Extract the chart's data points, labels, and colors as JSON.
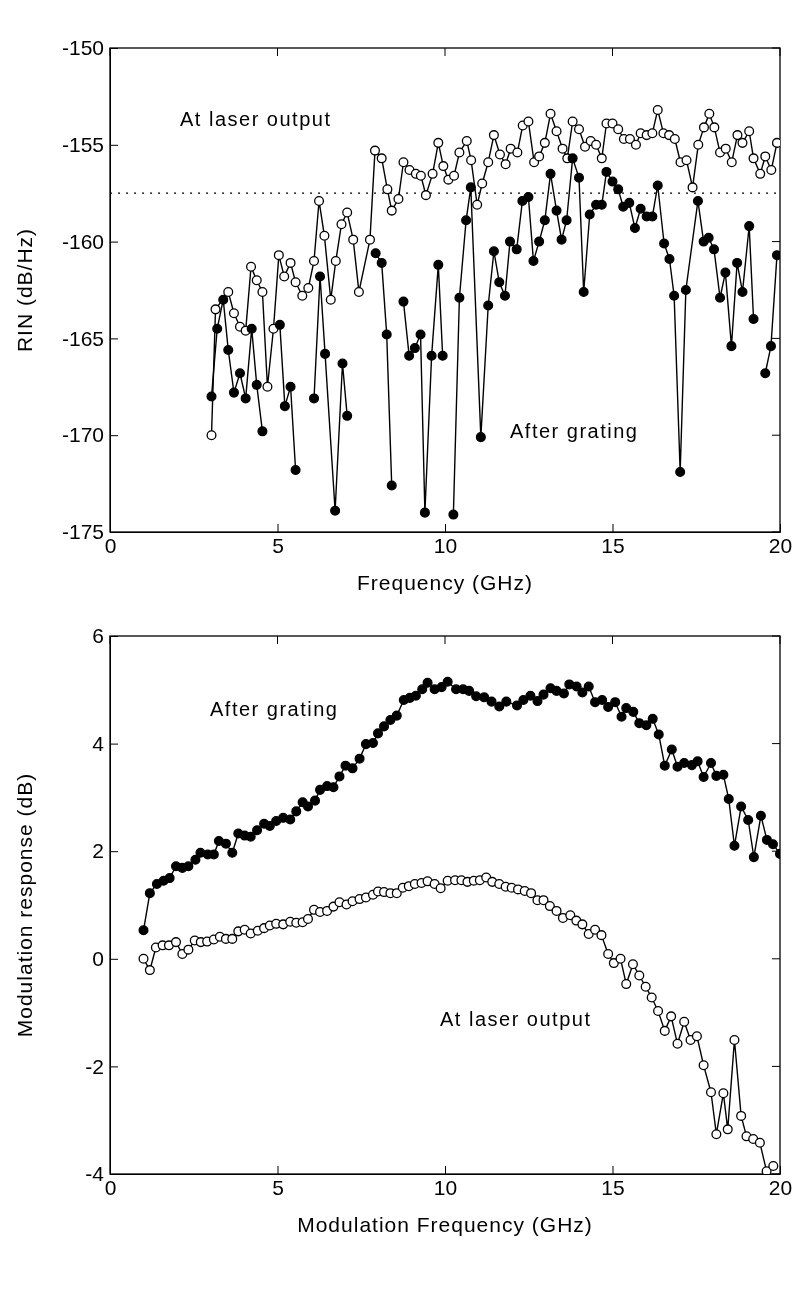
{
  "chart_data": [
    {
      "type": "line",
      "xlabel": "Frequency  (GHz)",
      "ylabel": "RIN  (dB/Hz)",
      "xlim": [
        0,
        20
      ],
      "ylim": [
        -175,
        -150
      ],
      "xticks": [
        0,
        5,
        10,
        15,
        20
      ],
      "yticks": [
        -175,
        -170,
        -165,
        -160,
        -155,
        -150
      ],
      "grid": false,
      "marker": "circle",
      "line_style": "solid",
      "ref_lines": [
        {
          "axis": "y",
          "value": -157.5,
          "line_style": "dotted",
          "color": "#000000"
        }
      ],
      "series": [
        {
          "name": "At laser output",
          "color": "#000000",
          "x": [
            3.03,
            3.15,
            3.53,
            3.7,
            3.88,
            4.05,
            4.21,
            4.38,
            4.55,
            4.7,
            4.88,
            5.04,
            5.2,
            5.39,
            5.54,
            5.74,
            5.92,
            6.09,
            6.24,
            6.4,
            6.59,
            6.74,
            6.91,
            7.08,
            7.26,
            7.43,
            7.76,
            7.91,
            8.11,
            8.28,
            8.41,
            8.61,
            8.76,
            8.94,
            9.13,
            9.28,
            9.43,
            9.63,
            9.8,
            9.95,
            10.1,
            10.27,
            10.43,
            10.65,
            10.78,
            10.96,
            11.11,
            11.29,
            11.46,
            11.64,
            11.81,
            11.96,
            12.16,
            12.32,
            12.49,
            12.66,
            12.81,
            12.98,
            13.15,
            13.33,
            13.51,
            13.65,
            13.81,
            14.0,
            14.18,
            14.35,
            14.51,
            14.68,
            14.82,
            15.0,
            15.17,
            15.34,
            15.52,
            15.7,
            15.84,
            16.02,
            16.19,
            16.35,
            16.52,
            16.69,
            16.86,
            17.03,
            17.21,
            17.39,
            17.56,
            17.73,
            17.89,
            18.04,
            18.21,
            18.38,
            18.56,
            18.73,
            18.88,
            19.08,
            19.21,
            19.41,
            19.56,
            19.74,
            19.91
          ],
          "values": [
            -170.0,
            -163.5,
            -162.6,
            -163.7,
            -164.4,
            -164.6,
            -161.3,
            -162.0,
            -162.6,
            -167.5,
            -164.5,
            -160.7,
            -161.8,
            -161.1,
            -162.1,
            -162.8,
            -162.4,
            -161.0,
            -157.9,
            -159.7,
            -163.0,
            -161.0,
            -159.1,
            -158.5,
            -159.9,
            -162.6,
            -159.9,
            -155.3,
            -155.7,
            -157.3,
            -158.4,
            -157.8,
            -155.9,
            -156.3,
            -156.5,
            -156.6,
            -157.6,
            -156.5,
            -154.9,
            -156.1,
            -156.8,
            -156.6,
            -155.4,
            -154.8,
            -155.8,
            -158.1,
            -157.0,
            -155.9,
            -154.5,
            -155.5,
            -156.0,
            -155.2,
            -155.4,
            -154.0,
            -153.8,
            -155.9,
            -155.6,
            -154.9,
            -153.4,
            -154.3,
            -155.2,
            -155.7,
            -153.8,
            -154.2,
            -155.1,
            -154.8,
            -155.0,
            -155.7,
            -153.9,
            -153.9,
            -154.2,
            -154.7,
            -154.7,
            -155.0,
            -154.4,
            -154.5,
            -154.4,
            -153.2,
            -154.4,
            -154.5,
            -154.7,
            -155.9,
            -155.8,
            -157.2,
            -155.0,
            -154.1,
            -153.4,
            -154.1,
            -155.4,
            -155.2,
            -155.9,
            -154.5,
            -154.9,
            -154.3,
            -155.7,
            -156.5,
            -155.6,
            -156.3,
            -154.9
          ]
        },
        {
          "name": "After grating",
          "color": "#000000",
          "x": [
            3.03,
            3.2,
            3.38,
            3.53,
            3.7,
            3.88,
            4.05,
            4.23,
            4.38,
            4.55,
            4.7,
            5.07,
            5.22,
            5.39,
            5.54,
            5.72,
            6.09,
            6.27,
            6.42,
            6.72,
            6.94,
            7.08,
            7.3,
            7.93,
            8.11,
            8.26,
            8.41,
            8.6,
            8.76,
            8.93,
            9.1,
            9.27,
            9.4,
            9.6,
            9.8,
            9.93,
            10.1,
            10.25,
            10.43,
            10.63,
            10.77,
            11.07,
            11.29,
            11.46,
            11.62,
            11.79,
            11.94,
            12.14,
            12.31,
            12.49,
            12.64,
            12.81,
            12.98,
            13.15,
            13.33,
            13.48,
            13.63,
            13.81,
            14.0,
            14.14,
            14.32,
            14.51,
            14.68,
            14.82,
            15.0,
            15.17,
            15.32,
            15.5,
            15.67,
            15.84,
            16.02,
            16.19,
            16.35,
            16.54,
            16.7,
            16.84,
            17.02,
            17.19,
            17.55,
            17.72,
            17.87,
            18.03,
            18.21,
            18.37,
            18.55,
            18.72,
            18.88,
            19.08,
            19.21,
            19.4,
            19.56,
            19.73,
            19.91
          ],
          "values": [
            -168.0,
            -164.5,
            -163.0,
            -165.6,
            -167.8,
            -166.8,
            -168.1,
            -164.5,
            -167.4,
            -169.8,
            null,
            -164.3,
            -168.5,
            -167.5,
            -171.8,
            null,
            -168.1,
            -161.8,
            -165.8,
            -173.9,
            -166.3,
            -169.0,
            null,
            -160.6,
            -161.1,
            -164.8,
            -172.6,
            null,
            -163.1,
            -165.9,
            -165.5,
            -164.8,
            -174.0,
            -165.9,
            -161.2,
            -165.9,
            null,
            -174.1,
            -162.9,
            -158.9,
            -157.2,
            -170.1,
            -163.3,
            -160.5,
            -162.1,
            -162.8,
            -160.0,
            -160.4,
            -157.9,
            -157.7,
            -161.0,
            -160.0,
            -158.9,
            -156.5,
            -158.4,
            -159.9,
            -158.9,
            -155.7,
            -156.7,
            -162.6,
            -158.6,
            -158.1,
            -158.1,
            -156.4,
            -156.9,
            -157.3,
            -158.2,
            -158.0,
            -159.3,
            -158.3,
            -158.7,
            -158.7,
            -157.1,
            -160.1,
            -160.9,
            -162.8,
            -171.9,
            -162.5,
            -157.9,
            -160.0,
            -159.8,
            -160.4,
            -162.9,
            -161.6,
            -165.4,
            -161.1,
            -162.6,
            -159.2,
            -164.0,
            null,
            -166.8,
            -165.4,
            -160.7
          ]
        }
      ]
    },
    {
      "type": "line",
      "xlabel": "Modulation Frequency  (GHz)",
      "ylabel": "Modulation response (dB)",
      "xlim": [
        0,
        20
      ],
      "ylim": [
        -4,
        6
      ],
      "xticks": [
        0,
        5,
        10,
        15,
        20
      ],
      "yticks": [
        -4,
        -2,
        0,
        2,
        4,
        6
      ],
      "grid": false,
      "marker": "circle",
      "line_style": "solid",
      "series": [
        {
          "name": "After grating",
          "color": "#000000",
          "x": [
            1.0,
            1.19,
            1.4,
            1.6,
            1.78,
            1.97,
            2.16,
            2.34,
            2.55,
            2.7,
            2.92,
            3.1,
            3.25,
            3.46,
            3.65,
            3.83,
            4.02,
            4.2,
            4.39,
            4.6,
            4.77,
            4.96,
            5.17,
            5.38,
            5.56,
            5.75,
            5.91,
            6.12,
            6.27,
            6.48,
            6.67,
            6.85,
            7.03,
            7.24,
            7.45,
            7.64,
            7.85,
            8.0,
            8.18,
            8.37,
            8.56,
            8.77,
            8.95,
            9.13,
            9.32,
            9.48,
            9.69,
            9.9,
            10.08,
            10.33,
            10.54,
            10.72,
            10.93,
            11.17,
            11.39,
            11.62,
            11.83,
            12.15,
            12.34,
            12.55,
            12.76,
            12.94,
            13.15,
            13.33,
            13.55,
            13.71,
            13.93,
            14.1,
            14.29,
            14.48,
            14.69,
            14.87,
            15.08,
            15.27,
            15.41,
            15.62,
            15.8,
            16.01,
            16.2,
            16.38,
            16.56,
            16.77,
            16.94,
            17.14,
            17.37,
            17.54,
            17.72,
            17.94,
            18.1,
            18.31,
            18.47,
            18.64,
            18.84,
            19.05,
            19.22,
            19.43,
            19.61,
            19.79,
            20.0
          ],
          "values": [
            0.53,
            1.22,
            1.39,
            1.45,
            1.5,
            1.72,
            1.69,
            1.72,
            1.84,
            1.97,
            1.94,
            1.94,
            2.19,
            2.14,
            1.97,
            2.33,
            2.29,
            2.27,
            2.39,
            2.51,
            2.47,
            2.56,
            2.62,
            2.59,
            2.74,
            2.91,
            2.83,
            2.94,
            3.14,
            3.21,
            3.19,
            3.39,
            3.59,
            3.54,
            3.72,
            3.99,
            4.01,
            4.19,
            4.32,
            4.44,
            4.52,
            4.81,
            4.85,
            4.89,
            5.01,
            5.13,
            5.01,
            5.05,
            5.15,
            5.01,
            5.01,
            4.98,
            4.88,
            4.86,
            4.78,
            4.69,
            4.78,
            4.71,
            4.81,
            4.89,
            4.79,
            4.91,
            5.03,
            4.98,
            4.93,
            5.1,
            5.06,
            4.95,
            5.06,
            4.77,
            4.81,
            4.68,
            4.77,
            4.5,
            4.66,
            4.59,
            4.38,
            4.34,
            4.46,
            4.17,
            3.59,
            3.89,
            3.57,
            3.64,
            3.6,
            3.67,
            3.38,
            3.64,
            3.4,
            3.42,
            2.97,
            2.1,
            2.83,
            2.58,
            1.89,
            2.66,
            2.21,
            2.13,
            1.95
          ]
        },
        {
          "name": "At laser output",
          "color": "#000000",
          "x": [
            1.0,
            1.19,
            1.37,
            1.57,
            1.76,
            1.97,
            2.16,
            2.34,
            2.53,
            2.71,
            2.9,
            3.1,
            3.28,
            3.46,
            3.65,
            3.83,
            4.02,
            4.2,
            4.41,
            4.6,
            4.77,
            4.96,
            5.17,
            5.38,
            5.56,
            5.75,
            5.91,
            6.09,
            6.27,
            6.48,
            6.67,
            6.85,
            7.06,
            7.24,
            7.45,
            7.64,
            7.85,
            8.0,
            8.18,
            8.37,
            8.56,
            8.74,
            8.92,
            9.1,
            9.3,
            9.48,
            9.69,
            9.87,
            10.08,
            10.3,
            10.49,
            10.67,
            10.86,
            11.04,
            11.23,
            11.41,
            11.62,
            11.81,
            11.99,
            12.18,
            12.38,
            12.57,
            12.76,
            12.94,
            13.13,
            13.33,
            13.52,
            13.74,
            13.92,
            14.1,
            14.29,
            14.48,
            14.67,
            14.87,
            15.04,
            15.24,
            15.41,
            15.61,
            15.8,
            15.99,
            16.17,
            16.36,
            16.56,
            16.75,
            16.94,
            17.14,
            17.33,
            17.52,
            17.72,
            17.94,
            18.1,
            18.31,
            18.44,
            18.64,
            18.84,
            19.0,
            19.2,
            19.4,
            19.6,
            19.8
          ],
          "values": [
            0.0,
            -0.21,
            0.21,
            0.25,
            0.25,
            0.31,
            0.09,
            0.17,
            0.34,
            0.31,
            0.32,
            0.36,
            0.41,
            0.37,
            0.37,
            0.51,
            0.54,
            0.47,
            0.52,
            0.57,
            0.62,
            0.65,
            0.64,
            0.69,
            0.67,
            0.68,
            0.74,
            0.91,
            0.87,
            0.89,
            0.97,
            1.05,
            1.01,
            1.07,
            1.11,
            1.14,
            1.19,
            1.25,
            1.24,
            1.22,
            1.22,
            1.32,
            1.35,
            1.39,
            1.41,
            1.44,
            1.39,
            1.31,
            1.45,
            1.46,
            1.46,
            1.43,
            1.45,
            1.46,
            1.51,
            1.43,
            1.39,
            1.34,
            1.32,
            1.29,
            1.26,
            1.22,
            1.09,
            1.09,
            0.98,
            0.89,
            0.76,
            0.81,
            0.71,
            0.64,
            0.46,
            0.54,
            0.44,
            0.09,
            -0.08,
            0.0,
            -0.47,
            -0.1,
            -0.31,
            -0.52,
            -0.72,
            -0.97,
            -1.34,
            -1.07,
            -1.58,
            -1.17,
            -1.51,
            -1.44,
            -1.98,
            -2.48,
            -3.26,
            -2.5,
            -3.17,
            -1.51,
            -2.92,
            -3.3,
            -3.35,
            -3.42,
            -3.95,
            -3.85
          ]
        }
      ]
    }
  ]
}
